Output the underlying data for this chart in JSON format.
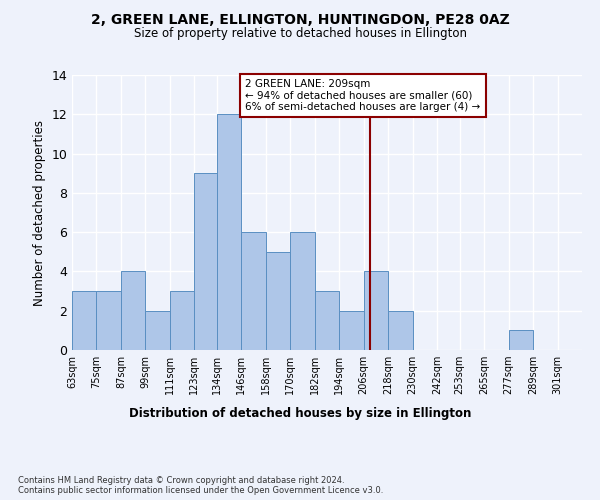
{
  "title": "2, GREEN LANE, ELLINGTON, HUNTINGDON, PE28 0AZ",
  "subtitle": "Size of property relative to detached houses in Ellington",
  "xlabel_bottom": "Distribution of detached houses by size in Ellington",
  "ylabel": "Number of detached properties",
  "categories": [
    "63sqm",
    "75sqm",
    "87sqm",
    "99sqm",
    "111sqm",
    "123sqm",
    "134sqm",
    "146sqm",
    "158sqm",
    "170sqm",
    "182sqm",
    "194sqm",
    "206sqm",
    "218sqm",
    "230sqm",
    "242sqm",
    "253sqm",
    "265sqm",
    "277sqm",
    "289sqm",
    "301sqm"
  ],
  "values": [
    3,
    3,
    4,
    2,
    3,
    9,
    12,
    6,
    5,
    6,
    3,
    2,
    4,
    2,
    0,
    0,
    0,
    0,
    1,
    0,
    0
  ],
  "bar_color": "#aec6e8",
  "bar_edge_color": "#5a8fc2",
  "ylim": [
    0,
    14
  ],
  "yticks": [
    0,
    2,
    4,
    6,
    8,
    10,
    12,
    14
  ],
  "vline_x": 209,
  "vline_color": "#8b0000",
  "annotation_text": "2 GREEN LANE: 209sqm\n← 94% of detached houses are smaller (60)\n6% of semi-detached houses are larger (4) →",
  "annotation_box_color": "#8b0000",
  "footnote": "Contains HM Land Registry data © Crown copyright and database right 2024.\nContains public sector information licensed under the Open Government Licence v3.0.",
  "background_color": "#eef2fb",
  "grid_color": "#ffffff",
  "bin_edges": [
    63,
    75,
    87,
    99,
    111,
    123,
    134,
    146,
    158,
    170,
    182,
    194,
    206,
    218,
    230,
    242,
    253,
    265,
    277,
    289,
    301,
    313
  ]
}
